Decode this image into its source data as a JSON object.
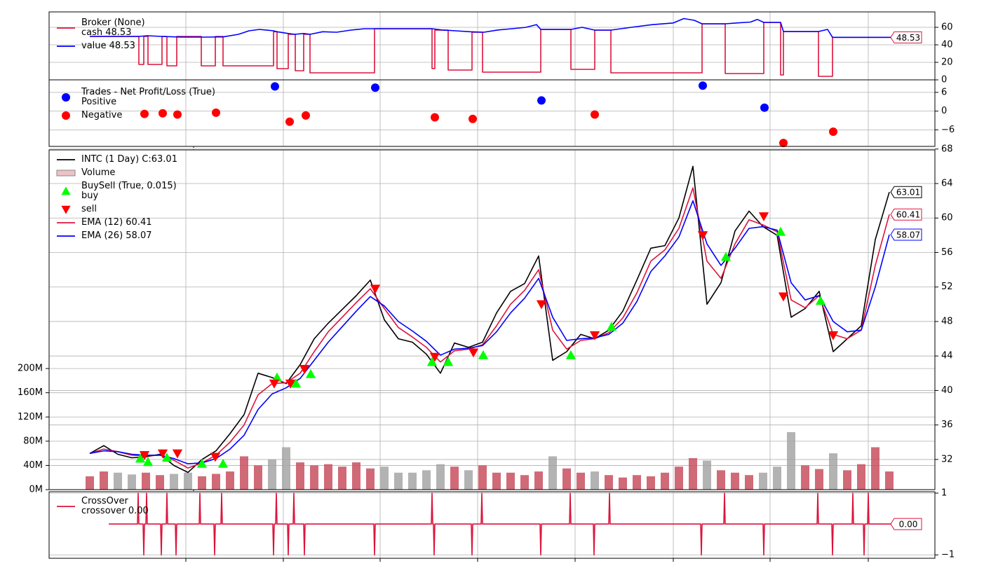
{
  "chart_data": [
    {
      "type": "line",
      "xlim": [
        -58,
        1205
      ],
      "xticks": [
        137,
        276,
        414,
        553,
        692,
        832,
        970,
        1110
      ],
      "ylim": [
        0,
        77.6
      ],
      "yticks": [
        0,
        20,
        40,
        60
      ],
      "grid": true,
      "series": [
        {
          "name": "Broker (None)\ncash 48.53",
          "type": "line",
          "color": "#dc143c",
          "last_label": "48.53",
          "x": [
            0,
            70,
            70,
            77,
            77,
            83,
            83,
            103,
            103,
            110,
            110,
            124,
            124,
            159,
            159,
            179,
            179,
            190,
            190,
            262,
            262,
            267,
            267,
            283,
            283,
            293,
            293,
            305,
            305,
            314,
            314,
            406,
            406,
            488,
            488,
            492,
            492,
            511,
            511,
            545,
            545,
            560,
            560,
            643,
            643,
            686,
            686,
            720,
            720,
            743,
            743,
            873,
            873,
            906,
            906,
            961,
            961,
            985,
            985,
            989,
            989,
            1039,
            1039,
            1059,
            1059,
            1142
          ],
          "values": [
            49.6,
            49.6,
            17.6,
            17.6,
            49.6,
            49.6,
            17.6,
            17.6,
            49.6,
            49.6,
            16,
            16,
            49.6,
            49.6,
            16,
            16,
            49.6,
            49.6,
            16,
            16,
            55,
            55,
            12.8,
            12.8,
            52,
            52,
            10.4,
            10.4,
            52,
            52,
            8,
            8,
            58.4,
            58.4,
            13,
            13,
            56.8,
            56.8,
            11.2,
            11.2,
            54.4,
            54.4,
            8.8,
            8.8,
            57.6,
            57.6,
            12,
            12,
            56.8,
            56.8,
            8,
            8,
            64,
            64,
            7.2,
            7.2,
            65.6,
            65.6,
            5.6,
            5.6,
            55.2,
            55.2,
            4,
            4,
            48.53,
            48.53
          ]
        },
        {
          "name": "value 48.53",
          "type": "line",
          "color": "#0000ff",
          "x": [
            0,
            70,
            82,
            102,
            132,
            162,
            190,
            212,
            227,
            242,
            262,
            267,
            283,
            292,
            305,
            314,
            332,
            352,
            372,
            392,
            406,
            488,
            502,
            522,
            542,
            562,
            582,
            602,
            622,
            637,
            643,
            686,
            702,
            720,
            743,
            772,
            802,
            832,
            847,
            862,
            873,
            906,
            922,
            942,
            952,
            961,
            985,
            989,
            1039,
            1052,
            1059,
            1142
          ],
          "values": [
            49.6,
            49.6,
            50.4,
            49.6,
            48.8,
            48.8,
            49,
            52,
            56,
            57.6,
            56,
            55,
            53,
            52,
            53,
            52,
            55,
            54.4,
            56.8,
            58.4,
            58.4,
            58.4,
            57,
            56,
            55,
            54.4,
            57,
            58.4,
            60,
            63,
            57.6,
            57.6,
            60,
            56.8,
            56.8,
            60,
            63,
            65,
            70,
            68,
            64,
            64,
            65,
            66,
            69,
            65.6,
            65.6,
            55.2,
            55.2,
            57.6,
            48.53,
            48.53
          ]
        }
      ]
    },
    {
      "type": "scatter",
      "xlim": [
        -58,
        1205
      ],
      "xticks": [
        137,
        276,
        414,
        553,
        692,
        832,
        970,
        1110
      ],
      "ylim": [
        -11.3,
        10
      ],
      "yticks": [
        {
          "value": -6,
          "label": "−6"
        },
        0,
        6
      ],
      "grid": true,
      "series": [
        {
          "name": "Trades - Net Profit/Loss (True)\nPositive",
          "type": "scatter",
          "marker": "o",
          "color": "#0000ff",
          "x": [
            264,
            407,
            644,
            874,
            962
          ],
          "values": [
            7.9,
            7.5,
            3.4,
            8.15,
            1.1
          ]
        },
        {
          "name": "Negative",
          "type": "scatter",
          "marker": "o",
          "color": "#ff0000",
          "x": [
            78,
            104,
            125,
            180,
            285,
            308,
            492,
            546,
            720,
            989,
            1060
          ],
          "values": [
            -0.9,
            -0.7,
            -1.1,
            -0.5,
            -3.4,
            -1.4,
            -2.0,
            -2.5,
            -1.1,
            -10.2,
            -6.6
          ]
        }
      ]
    },
    {
      "type": "line",
      "xlim": [
        -58,
        1205
      ],
      "xticks": [
        137,
        276,
        414,
        553,
        692,
        832,
        970,
        1110
      ],
      "ylim": [
        28.5,
        67.9
      ],
      "yticks": [
        32,
        36,
        40,
        44,
        48,
        52,
        56,
        60,
        64,
        68
      ],
      "y2lim": [
        0,
        561
      ],
      "y2ticks": [
        {
          "value": 0,
          "label": "0M"
        },
        {
          "value": 40,
          "label": "40M"
        },
        {
          "value": 80,
          "label": "80M"
        },
        {
          "value": 120,
          "label": "120M"
        },
        {
          "value": 160,
          "label": "160M"
        },
        {
          "value": 200,
          "label": "200M"
        }
      ],
      "grid": true,
      "x": [
        0,
        20,
        40,
        60,
        80,
        100,
        120,
        140,
        160,
        180,
        200,
        220,
        240,
        260,
        280,
        300,
        320,
        340,
        360,
        380,
        400,
        420,
        440,
        460,
        480,
        500,
        520,
        540,
        560,
        580,
        600,
        620,
        640,
        660,
        680,
        700,
        720,
        740,
        760,
        780,
        800,
        820,
        840,
        860,
        880,
        900,
        920,
        940,
        960,
        980,
        1000,
        1020,
        1040,
        1060,
        1080,
        1100,
        1120,
        1140
      ],
      "series": [
        {
          "name": "INTC (1 Day) C:63.01",
          "type": "line",
          "color": "#000000",
          "last_label": "63.01",
          "values": [
            32.7,
            33.6,
            32.6,
            32.2,
            32.3,
            32.6,
            31.3,
            30.5,
            32.0,
            33.0,
            35.0,
            37.2,
            42.0,
            41.5,
            40.8,
            43.0,
            46.0,
            47.8,
            49.4,
            51.0,
            52.8,
            48.2,
            46.0,
            45.6,
            44.2,
            42.0,
            45.5,
            45.0,
            45.6,
            49.0,
            51.5,
            52.4,
            55.6,
            43.5,
            44.5,
            46.5,
            46.0,
            47.0,
            49.2,
            52.8,
            56.5,
            56.8,
            60.0,
            66.0,
            50.0,
            52.5,
            58.5,
            60.8,
            59.0,
            58.0,
            48.5,
            49.5,
            51.5,
            44.5,
            46.0,
            47.5,
            57.5,
            63.01
          ]
        },
        {
          "name": "Volume",
          "type": "bar",
          "axis": "y2",
          "color": "#c8505f",
          "down_color": "#a6a6a6",
          "values": [
            22,
            30,
            28,
            25,
            28,
            24,
            26,
            28,
            22,
            26,
            30,
            55,
            40,
            50,
            70,
            45,
            40,
            42,
            38,
            45,
            35,
            38,
            28,
            28,
            32,
            42,
            38,
            32,
            40,
            28,
            28,
            24,
            30,
            55,
            35,
            28,
            30,
            24,
            20,
            24,
            22,
            28,
            38,
            52,
            48,
            32,
            28,
            24,
            28,
            38,
            95,
            40,
            34,
            60,
            32,
            42,
            70,
            30
          ]
        },
        {
          "name": "BuySell (True, 0.015)\nbuy",
          "type": "scatter",
          "marker": "^",
          "color": "#00ff00",
          "x": [
            72,
            83,
            110,
            160,
            190,
            267,
            294,
            315,
            488,
            511,
            561,
            686,
            744,
            907,
            985,
            1042
          ],
          "values": [
            32.1,
            31.7,
            32.2,
            31.5,
            31.5,
            41.5,
            40.8,
            41.9,
            43.3,
            43.3,
            44.1,
            44.1,
            47.4,
            55.5,
            58.4,
            50.4
          ]
        },
        {
          "name": "sell",
          "type": "scatter",
          "marker": "v",
          "color": "#ff0000",
          "x": [
            78,
            104,
            125,
            179,
            263,
            286,
            306,
            407,
            492,
            547,
            644,
            720,
            874,
            961,
            989,
            1060
          ],
          "values": [
            32.5,
            32.7,
            32.7,
            32.3,
            40.8,
            40.8,
            42.5,
            51.8,
            43.9,
            44.4,
            50.0,
            46.4,
            58.0,
            60.2,
            50.9,
            46.4
          ]
        },
        {
          "name": "EMA (12) 60.41",
          "type": "line",
          "color": "#dc143c",
          "last_label": "60.41",
          "values": [
            32.7,
            33.2,
            32.9,
            32.5,
            32.4,
            32.5,
            31.9,
            31.0,
            31.6,
            32.5,
            34.0,
            36.0,
            39.5,
            40.8,
            40.9,
            42.0,
            44.5,
            46.8,
            48.5,
            50.2,
            51.8,
            49.5,
            47.3,
            46.2,
            45.0,
            43.3,
            44.6,
            44.8,
            45.3,
            47.5,
            50.0,
            51.6,
            54.0,
            47.0,
            44.8,
            45.8,
            46.0,
            46.7,
            48.4,
            51.3,
            55.0,
            56.3,
            58.8,
            63.5,
            55.0,
            53.0,
            57.0,
            59.8,
            59.2,
            58.4,
            50.5,
            49.6,
            51.0,
            46.5,
            46.0,
            47.0,
            54.5,
            60.41
          ]
        },
        {
          "name": "EMA (26) 58.07",
          "type": "line",
          "color": "#0000ff",
          "last_label": "58.07",
          "values": [
            32.7,
            33.0,
            32.9,
            32.6,
            32.5,
            32.5,
            32.1,
            31.5,
            31.6,
            32.1,
            33.2,
            34.8,
            37.8,
            39.6,
            40.3,
            41.4,
            43.5,
            45.6,
            47.4,
            49.2,
            50.9,
            49.8,
            48.0,
            46.9,
            45.7,
            44.1,
            44.8,
            44.9,
            45.2,
            46.8,
            49.0,
            50.7,
            53.0,
            48.5,
            45.8,
            46.0,
            46.1,
            46.5,
            47.8,
            50.3,
            53.8,
            55.6,
            57.8,
            62.0,
            57.0,
            54.5,
            56.5,
            58.8,
            59.0,
            58.6,
            52.5,
            50.5,
            51.0,
            48.0,
            46.8,
            47.0,
            52.0,
            58.07
          ]
        }
      ]
    },
    {
      "type": "line",
      "xlim": [
        -58,
        1205
      ],
      "xticks": [
        137,
        276,
        414,
        553,
        692,
        832,
        970,
        1110
      ],
      "ylim": [
        -1.11,
        1.045
      ],
      "yticks": [
        {
          "value": -1,
          "label": "−1"
        },
        1
      ],
      "grid": true,
      "series": [
        {
          "name": "CrossOver\ncrossover 0.00",
          "type": "line",
          "color": "#dc143c",
          "last_label": "0.00",
          "x": [
            27,
            68,
            69,
            70,
            76,
            77,
            78,
            80,
            81,
            82,
            101,
            102,
            103,
            109,
            110,
            111,
            122,
            123,
            124,
            156,
            157,
            158,
            177,
            178,
            179,
            187,
            188,
            189,
            261,
            262,
            263,
            265,
            266,
            267,
            282,
            283,
            284,
            290,
            291,
            292,
            305,
            306,
            307,
            405,
            406,
            407,
            487,
            488,
            489,
            490,
            491,
            492,
            544,
            545,
            546,
            558,
            559,
            560,
            642,
            643,
            644,
            684,
            685,
            686,
            718,
            719,
            720,
            740,
            741,
            742,
            871,
            872,
            873,
            904,
            905,
            906,
            960,
            961,
            962,
            1037,
            1038,
            1039,
            1058,
            1059,
            1060,
            1087,
            1088,
            1089,
            1103,
            1104,
            1105,
            1109,
            1110,
            1111,
            1142
          ],
          "values": [
            0,
            0,
            1,
            0,
            0,
            -1,
            0,
            0,
            1,
            0,
            0,
            -1,
            0,
            0,
            1,
            0,
            0,
            -1,
            0,
            0,
            1,
            0,
            0,
            -1,
            0,
            0,
            1,
            0,
            0,
            -1,
            0,
            0,
            1,
            0,
            0,
            -1,
            0,
            0,
            1,
            0,
            0,
            -1,
            0,
            0,
            -1,
            0,
            0,
            1,
            0,
            0,
            -1,
            0,
            0,
            -1,
            0,
            0,
            1,
            0,
            0,
            -1,
            0,
            0,
            1,
            0,
            0,
            -1,
            0,
            0,
            1,
            0,
            0,
            -1,
            0,
            0,
            1,
            0,
            0,
            -1,
            0,
            0,
            1,
            0,
            0,
            -1,
            0,
            0,
            1,
            0,
            0,
            -1,
            0,
            0,
            1,
            0,
            0
          ]
        }
      ]
    }
  ]
}
